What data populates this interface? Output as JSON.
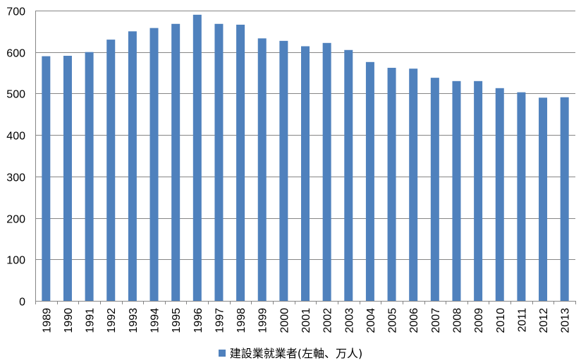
{
  "chart_data": {
    "type": "bar",
    "categories": [
      "1989",
      "1990",
      "1991",
      "1992",
      "1993",
      "1994",
      "1995",
      "1996",
      "1997",
      "1998",
      "1999",
      "2000",
      "2001",
      "2002",
      "2003",
      "2004",
      "2005",
      "2006",
      "2007",
      "2008",
      "2009",
      "2010",
      "2011",
      "2012",
      "2013"
    ],
    "series": [
      {
        "name": "建設業就業者(左軸、万人)",
        "color": "#4F81BD",
        "values": [
          590,
          591,
          600,
          630,
          650,
          658,
          668,
          690,
          668,
          666,
          633,
          627,
          614,
          622,
          605,
          576,
          562,
          560,
          538,
          530,
          530,
          513,
          503,
          490,
          491
        ]
      }
    ],
    "yticks": [
      "0",
      "100",
      "200",
      "300",
      "400",
      "500",
      "600",
      "700"
    ],
    "ylim": [
      0,
      700
    ],
    "grid": true,
    "gridColor": "#868686",
    "legend_position": "bottom",
    "title": "",
    "xlabel": "",
    "ylabel": ""
  }
}
